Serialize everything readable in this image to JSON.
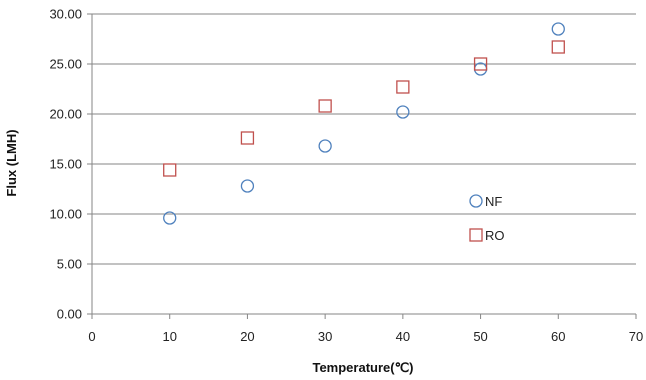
{
  "chart_data": {
    "type": "scatter",
    "title": "",
    "xlabel": "Temperature(℃)",
    "ylabel": "Flux (LMH)",
    "xlim": [
      0,
      70
    ],
    "ylim": [
      0,
      30
    ],
    "x_ticks": [
      0,
      10,
      20,
      30,
      40,
      50,
      60,
      70
    ],
    "y_ticks": [
      "0.00",
      "5.00",
      "10.00",
      "15.00",
      "20.00",
      "25.00",
      "30.00"
    ],
    "grid": "horizontal",
    "legend_position": "inside-right",
    "series": [
      {
        "name": "NF",
        "marker": "circle",
        "color": "#4F81BD",
        "x": [
          10,
          20,
          30,
          40,
          50,
          60
        ],
        "y": [
          9.6,
          12.8,
          16.8,
          20.2,
          24.5,
          28.5
        ]
      },
      {
        "name": "RO",
        "marker": "square",
        "color": "#C0504D",
        "x": [
          10,
          20,
          30,
          40,
          50,
          60
        ],
        "y": [
          14.4,
          17.6,
          20.8,
          22.7,
          25.0,
          26.7
        ]
      }
    ]
  }
}
